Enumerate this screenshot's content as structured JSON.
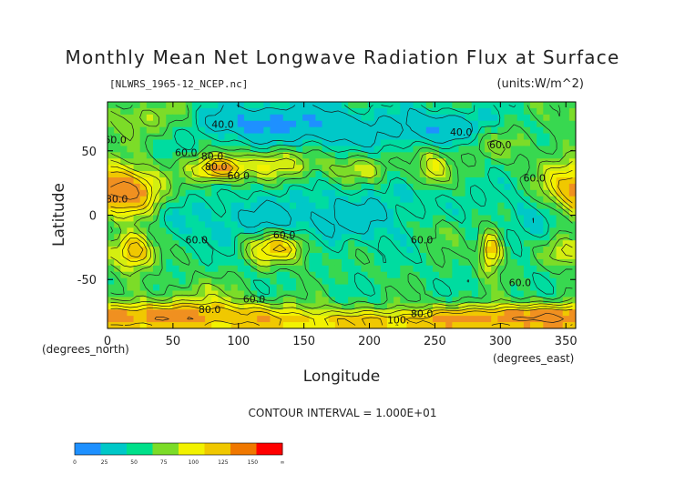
{
  "chart_data": {
    "type": "heatmap",
    "title": "Monthly Mean Net Longwave Radiation Flux at Surface",
    "subtitle_left": "[NLWRS_1965-12_NCEP.nc]",
    "subtitle_right": "(units:W/m^2)",
    "xlabel": "Longitude",
    "ylabel": "Latitude",
    "x_unit_label": "(degrees_east)",
    "y_unit_label": "(degrees_north)",
    "xlim": [
      0,
      357.5
    ],
    "ylim": [
      -88,
      88
    ],
    "x_ticks": [
      0,
      50,
      100,
      150,
      200,
      250,
      300,
      350
    ],
    "y_ticks": [
      50,
      0,
      -50
    ],
    "contour_labels": [
      {
        "text": "40.0",
        "lon": 88,
        "lat": 68
      },
      {
        "text": "60.0",
        "lon": 6,
        "lat": 56
      },
      {
        "text": "60.0",
        "lon": 60,
        "lat": 46
      },
      {
        "text": "80.0",
        "lon": 80,
        "lat": 43
      },
      {
        "text": "80.0",
        "lon": 83,
        "lat": 35
      },
      {
        "text": "60.0",
        "lon": 100,
        "lat": 28
      },
      {
        "text": "80.0",
        "lon": 7,
        "lat": 10
      },
      {
        "text": "40.0",
        "lon": 270,
        "lat": 62
      },
      {
        "text": "60.0",
        "lon": 300,
        "lat": 52
      },
      {
        "text": "60.0",
        "lon": 326,
        "lat": 26
      },
      {
        "text": "60.0",
        "lon": 68,
        "lat": -22
      },
      {
        "text": "60.0",
        "lon": 135,
        "lat": -18
      },
      {
        "text": "60.0",
        "lon": 240,
        "lat": -22
      },
      {
        "text": "60.0",
        "lon": 315,
        "lat": -55
      },
      {
        "text": "60.0",
        "lon": 112,
        "lat": -68
      },
      {
        "text": "80.0",
        "lon": 78,
        "lat": -76
      },
      {
        "text": "80.0",
        "lon": 240,
        "lat": -79
      },
      {
        "text": "100.",
        "lon": 222,
        "lat": -84
      }
    ],
    "footer": "CONTOUR INTERVAL = 1.000E+01",
    "colorbar": {
      "colors": [
        "#1E90FF",
        "#00C8C8",
        "#00E08A",
        "#7CDC28",
        "#F2F200",
        "#F0C800",
        "#F07800",
        "#F03030",
        "#FF0000"
      ],
      "tick_labels": [
        "0",
        "25",
        "50",
        "75",
        "100",
        "125",
        "150",
        "∞"
      ]
    }
  }
}
